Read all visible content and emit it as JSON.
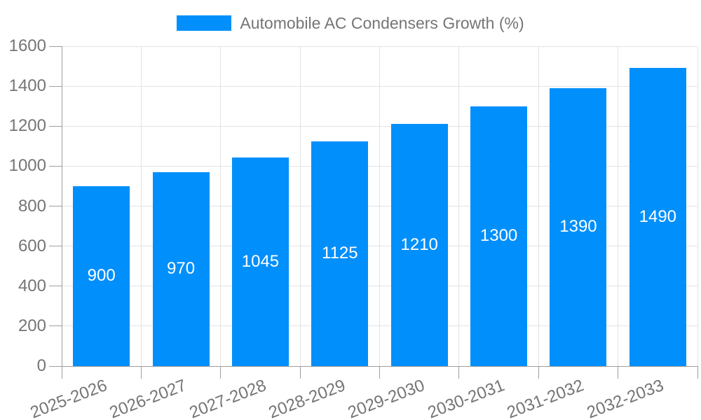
{
  "chart_data": {
    "type": "bar",
    "title": "Automobile AC Condensers Growth (%)",
    "categories": [
      "2025-2026",
      "2026-2027",
      "2027-2028",
      "2028-2029",
      "2029-2030",
      "2030-2031",
      "2031-2032",
      "2032-2033"
    ],
    "values": [
      900,
      970,
      1045,
      1125,
      1210,
      1300,
      1390,
      1490
    ],
    "xlabel": "",
    "ylabel": "",
    "ylim": [
      0,
      1600
    ],
    "ytick_step": 200,
    "grid": true,
    "legend_position": "top",
    "colors": {
      "bar": "#008FFB",
      "bar_label_text": "#ffffff",
      "axis_text": "#757575",
      "grid_line": "#e3e3e3",
      "axis_line": "#9e9e9e",
      "background": "#ffffff"
    }
  }
}
